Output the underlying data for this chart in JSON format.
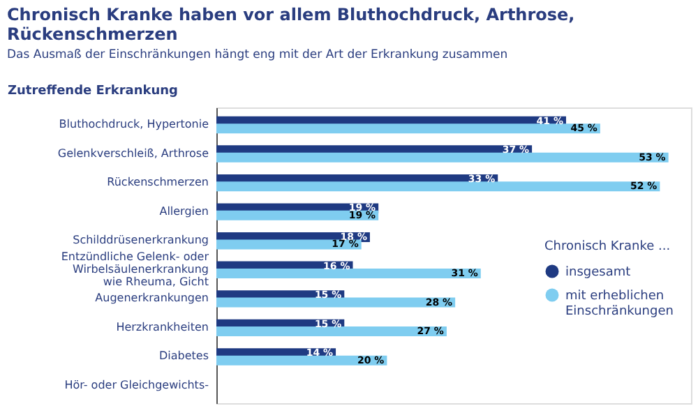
{
  "chart_data": {
    "type": "bar",
    "orientation": "horizontal",
    "title": "Chronisch Kranke haben vor allem Bluthochdruck, Arthrose, Rückenschmerzen",
    "subtitle": "Das Ausmaß der Einschränkungen hängt eng mit der Art der Erkrankung zusammen",
    "ylabel": "Zutreffende Erkrankung",
    "legend_title": "Chronisch Kranke ...",
    "categories": [
      "Bluthochdruck, Hypertonie",
      "Gelenkverschleiß, Arthrose",
      "Rückenschmerzen",
      "Allergien",
      "Schilddrüsenerkrankung",
      "Entzündliche Gelenk- oder\nWirbelsäulenerkrankung\nwie Rheuma, Gicht",
      "Augenerkrankungen",
      "Herzkrankheiten",
      "Diabetes",
      "Hör- oder Gleichgewichts-"
    ],
    "series": [
      {
        "name": "insgesamt",
        "color": "#1f3a82",
        "values": [
          41,
          37,
          33,
          19,
          18,
          16,
          15,
          15,
          14,
          null
        ],
        "value_labels": [
          "41 %",
          "37 %",
          "33 %",
          "19 %",
          "18 %",
          "16 %",
          "15 %",
          "15 %",
          "14 %",
          null
        ]
      },
      {
        "name": "mit erheblichen\nEinschränkungen",
        "color": "#7fcdf0",
        "values": [
          45,
          53,
          52,
          19,
          17,
          31,
          28,
          27,
          20,
          null
        ],
        "value_labels": [
          "45 %",
          "53 %",
          "52 %",
          "19 %",
          "17 %",
          "31 %",
          "28 %",
          "27 %",
          "20 %",
          null
        ]
      }
    ],
    "legend": "right",
    "grid": false
  }
}
